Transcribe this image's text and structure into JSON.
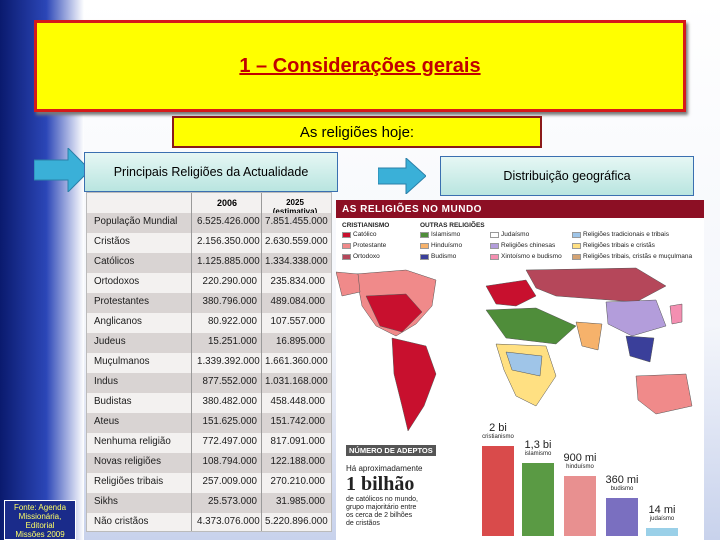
{
  "slide": {
    "title": "1 – Considerações gerais",
    "subtitle": "As religiões hoje:",
    "left_label": "Principais Religiões da Actualidade",
    "right_label": "Distribuição geográfica",
    "source": [
      "Fonte: Agenda",
      "Missionária,",
      "Editorial",
      "Missões 2009"
    ]
  },
  "table": {
    "headers": [
      "",
      "2006",
      "2025 (estimativa)"
    ],
    "rows": [
      [
        "População Mundial",
        "6.525.426.000",
        "7.851.455.000"
      ],
      [
        "Cristãos",
        "2.156.350.000",
        "2.630.559.000"
      ],
      [
        "Católicos",
        "1.125.885.000",
        "1.334.338.000"
      ],
      [
        "Ortodoxos",
        "220.290.000",
        "235.834.000"
      ],
      [
        "Protestantes",
        "380.796.000",
        "489.084.000"
      ],
      [
        "Anglicanos",
        "80.922.000",
        "107.557.000"
      ],
      [
        "Judeus",
        "15.251.000",
        "16.895.000"
      ],
      [
        "Muçulmanos",
        "1.339.392.000",
        "1.661.360.000"
      ],
      [
        "Indus",
        "877.552.000",
        "1.031.168.000"
      ],
      [
        "Budistas",
        "380.482.000",
        "458.448.000"
      ],
      [
        "Ateus",
        "151.625.000",
        "151.742.000"
      ],
      [
        "Nenhuma religião",
        "772.497.000",
        "817.091.000"
      ],
      [
        "Novas religiões",
        "108.794.000",
        "122.188.000"
      ],
      [
        "Religiões tribais",
        "257.009.000",
        "270.210.000"
      ],
      [
        "Sikhs",
        "25.573.000",
        "31.985.000"
      ],
      [
        "Não cristãos",
        "4.373.076.000",
        "5.220.896.000"
      ]
    ]
  },
  "map": {
    "header": "AS RELIGIÕES NO MUNDO",
    "legend_heads": [
      "CRISTIANISMO",
      "OUTRAS RELIGIÕES"
    ],
    "legend": [
      {
        "label": "Católico",
        "color": "#c8102e"
      },
      {
        "label": "Protestante",
        "color": "#f08a8a"
      },
      {
        "label": "Ortodoxo",
        "color": "#b5475a"
      },
      {
        "label": "Islamismo",
        "color": "#4f8d3a"
      },
      {
        "label": "Hinduísmo",
        "color": "#f6b26b"
      },
      {
        "label": "Budismo",
        "color": "#3a3f9a"
      },
      {
        "label": "Judaísmo",
        "color": "#ffffff"
      },
      {
        "label": "Religiões chinesas",
        "color": "#b39ddb"
      },
      {
        "label": "Xintoísmo e budismo",
        "color": "#f48fb1"
      },
      {
        "label": "Religiões tradicionais e tribais",
        "color": "#9fc5e8"
      },
      {
        "label": "Religiões tribais e cristãs",
        "color": "#ffe082"
      },
      {
        "label": "Religiões tribais, cristãs e muçulmana",
        "color": "#d4a373"
      }
    ],
    "adepts_title": "NÚMERO DE ADEPTOS",
    "adepts_text": [
      "Há aproximadamente",
      "1 bilhão",
      "de católicos no mundo,",
      "grupo majoritário entre",
      "os cerca de 2 bilhões",
      "de cristãos"
    ],
    "bars": [
      {
        "value": "2 bi",
        "label": "cristianismo",
        "color": "#d94b4b",
        "level": 2000
      },
      {
        "value": "1,3 bi",
        "label": "islamismo",
        "color": "#5a9a44",
        "level": 1300
      },
      {
        "value": "900 mi",
        "label": "hinduísmo",
        "color": "#e89090",
        "level": 900
      },
      {
        "value": "360 mi",
        "label": "budismo",
        "color": "#7a6fc0",
        "level": 360
      },
      {
        "value": "14 mi",
        "label": "judaísmo",
        "color": "#9ad0e8",
        "level": 14
      }
    ]
  }
}
